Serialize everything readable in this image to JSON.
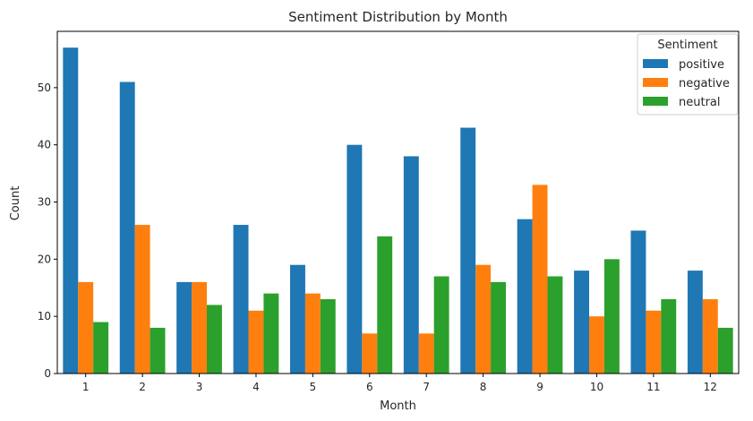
{
  "chart_data": {
    "type": "bar",
    "title": "Sentiment Distribution by Month",
    "xlabel": "Month",
    "ylabel": "Count",
    "categories": [
      "1",
      "2",
      "3",
      "4",
      "5",
      "6",
      "7",
      "8",
      "9",
      "10",
      "11",
      "12"
    ],
    "series": [
      {
        "name": "positive",
        "color": "#1f77b4",
        "values": [
          57,
          51,
          16,
          26,
          19,
          40,
          38,
          43,
          27,
          18,
          25,
          18
        ]
      },
      {
        "name": "negative",
        "color": "#ff7f0e",
        "values": [
          16,
          26,
          16,
          11,
          14,
          7,
          7,
          19,
          33,
          10,
          11,
          13
        ]
      },
      {
        "name": "neutral",
        "color": "#2ca02c",
        "values": [
          9,
          8,
          12,
          14,
          13,
          24,
          17,
          16,
          17,
          20,
          13,
          8
        ]
      }
    ],
    "ylim": [
      0,
      59.85
    ],
    "yticks": [
      0,
      10,
      20,
      30,
      40,
      50
    ],
    "grid": false,
    "legend": {
      "title": "Sentiment",
      "placement": "top-right"
    }
  }
}
